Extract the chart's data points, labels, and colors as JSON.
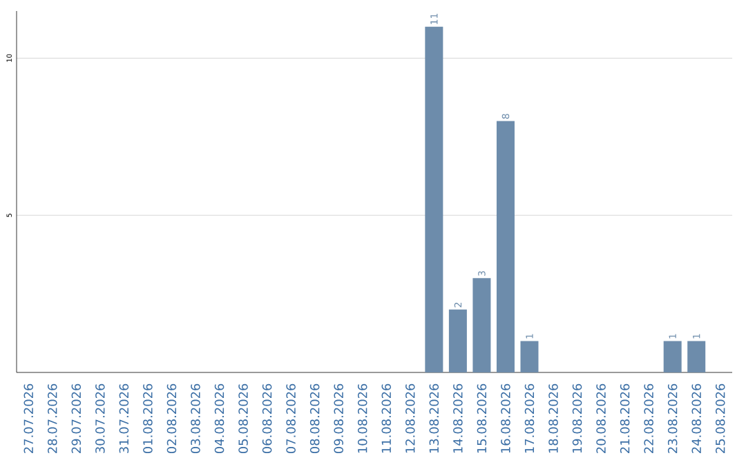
{
  "chart_data": {
    "type": "bar",
    "categories": [
      "27.07.2026",
      "28.07.2026",
      "29.07.2026",
      "30.07.2026",
      "31.07.2026",
      "01.08.2026",
      "02.08.2026",
      "03.08.2026",
      "04.08.2026",
      "05.08.2026",
      "06.08.2026",
      "07.08.2026",
      "08.08.2026",
      "09.08.2026",
      "10.08.2026",
      "11.08.2026",
      "12.08.2026",
      "13.08.2026",
      "14.08.2026",
      "15.08.2026",
      "16.08.2026",
      "17.08.2026",
      "18.08.2026",
      "19.08.2026",
      "20.08.2026",
      "21.08.2026",
      "22.08.2026",
      "23.08.2026",
      "24.08.2026",
      "25.08.2026"
    ],
    "values": [
      0,
      0,
      0,
      0,
      0,
      0,
      0,
      0,
      0,
      0,
      0,
      0,
      0,
      0,
      0,
      0,
      0,
      11,
      2,
      3,
      8,
      1,
      0,
      0,
      0,
      0,
      0,
      1,
      1,
      0
    ],
    "value_labels": [
      null,
      null,
      null,
      null,
      null,
      null,
      null,
      null,
      null,
      null,
      null,
      null,
      null,
      null,
      null,
      null,
      null,
      "11",
      "2",
      "3",
      "8",
      "1",
      null,
      null,
      null,
      null,
      null,
      "1",
      "1",
      null
    ],
    "color": "#6d8cab",
    "ylim": [
      0,
      11.5
    ],
    "yticks": [
      5,
      10
    ],
    "grid": "y"
  }
}
